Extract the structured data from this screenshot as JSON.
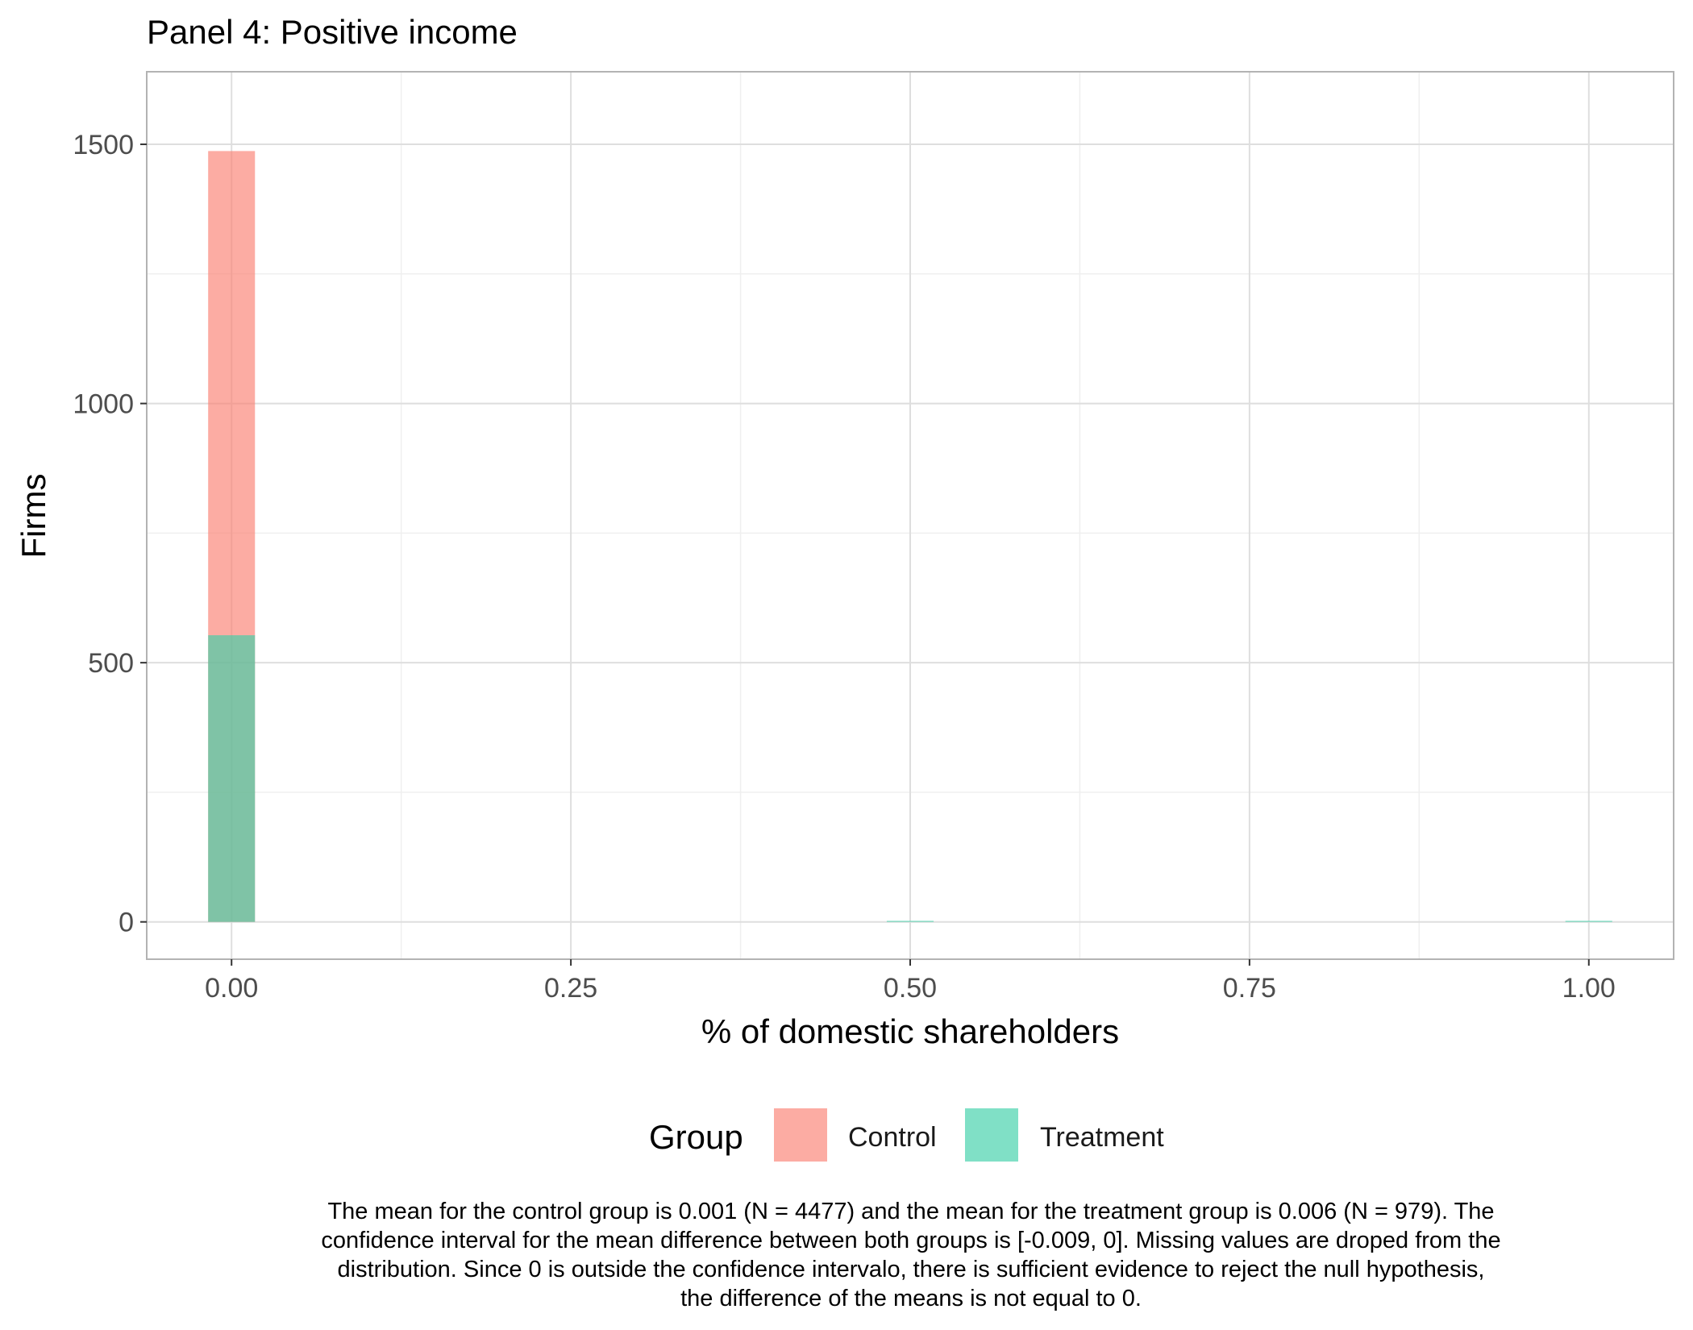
{
  "chart_data": {
    "type": "bar",
    "title": "Panel 4: Positive income",
    "xlabel": "% of domestic shareholders",
    "ylabel": "Firms",
    "xlim": [
      -0.0625,
      1.0625
    ],
    "ylim": [
      -72,
      1640
    ],
    "x_ticks": [
      0.0,
      0.25,
      0.5,
      0.75,
      1.0
    ],
    "x_tick_labels": [
      "0.00",
      "0.25",
      "0.50",
      "0.75",
      "1.00"
    ],
    "y_ticks": [
      0,
      500,
      1000,
      1500
    ],
    "y_tick_labels": [
      "0",
      "500",
      "1000",
      "1500"
    ],
    "grid": true,
    "bin_width": 0.0345,
    "series": [
      {
        "name": "Control",
        "color": "#FA8072",
        "bins": [
          {
            "x": 0.0,
            "count": 1487
          }
        ]
      },
      {
        "name": "Treatment",
        "color": "#3CCFA8",
        "bins": [
          {
            "x": 0.0,
            "count": 553
          },
          {
            "x": 0.5,
            "count": 2
          },
          {
            "x": 1.0,
            "count": 2
          }
        ]
      }
    ],
    "legend": {
      "title": "Group",
      "position": "bottom",
      "items": [
        {
          "label": "Control",
          "color": "#FA8072"
        },
        {
          "label": "Treatment",
          "color": "#3CCFA8"
        }
      ]
    },
    "caption": [
      "The mean for the control group is 0.001 (N = 4477) and the mean for the treatment group is 0.006 (N = 979). The",
      "confidence interval for the mean difference between both groups is [-0.009, 0]. Missing values are droped from the",
      "distribution. Since 0 is outside the confidence intervalo, there is sufficient evidence to reject the null hypothesis,",
      "the difference of the means is not equal to 0."
    ]
  }
}
